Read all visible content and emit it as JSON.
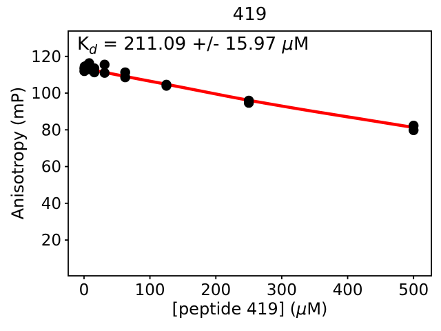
{
  "title": "419",
  "annotation": {
    "symbol": "K",
    "subscript": "d",
    "rest": " = 211.09 +/- 15.97 ",
    "mu": "μ",
    "unit": "M"
  },
  "axes": {
    "xlabel_pre": "[peptide 419] (",
    "xlabel_mu": "μ",
    "xlabel_post": "M)",
    "ylabel": "Anisotropy (mP)"
  },
  "chart_data": {
    "type": "scatter",
    "title": "419",
    "xlabel": "[peptide 419] (μM)",
    "ylabel": "Anisotropy (mP)",
    "annotation_text": "K_d = 211.09 +/- 15.97 μM",
    "kd_uM": 211.09,
    "kd_err_uM": 15.97,
    "x_ticks": [
      0,
      100,
      200,
      300,
      400,
      500
    ],
    "y_ticks": [
      20,
      40,
      60,
      80,
      100,
      120
    ],
    "xlim": [
      -24,
      527
    ],
    "ylim": [
      0.5,
      133.8
    ],
    "grid": false,
    "legend": "none",
    "marker_color": "#000000",
    "fit_color": "#ff0000",
    "points": [
      [
        0.49,
        113.5
      ],
      [
        0.49,
        112.0
      ],
      [
        0.98,
        114.5
      ],
      [
        0.98,
        112.5
      ],
      [
        1.95,
        114.0
      ],
      [
        1.95,
        112.8
      ],
      [
        3.91,
        115.0
      ],
      [
        3.91,
        113.2
      ],
      [
        7.81,
        116.3
      ],
      [
        7.81,
        113.0
      ],
      [
        15.63,
        113.5
      ],
      [
        15.63,
        111.3
      ],
      [
        31.25,
        115.5
      ],
      [
        31.25,
        111.0
      ],
      [
        62.5,
        111.3
      ],
      [
        62.5,
        108.6
      ],
      [
        125,
        104.6
      ],
      [
        125,
        104.0
      ],
      [
        250,
        95.9
      ],
      [
        250,
        94.7
      ],
      [
        500,
        82.3
      ],
      [
        500,
        79.8
      ]
    ],
    "fit_curve": [
      [
        0,
        113.6
      ],
      [
        31.25,
        111.3
      ],
      [
        62.5,
        109.1
      ],
      [
        93.75,
        106.9
      ],
      [
        125,
        104.8
      ],
      [
        156.25,
        102.6
      ],
      [
        187.5,
        100.4
      ],
      [
        218.75,
        98.2
      ],
      [
        250,
        96.1
      ],
      [
        281.25,
        94.1
      ],
      [
        312.5,
        92.2
      ],
      [
        343.75,
        90.3
      ],
      [
        375,
        88.5
      ],
      [
        406.25,
        86.7
      ],
      [
        437.5,
        84.9
      ],
      [
        468.75,
        83.1
      ],
      [
        500,
        81.3
      ]
    ]
  }
}
